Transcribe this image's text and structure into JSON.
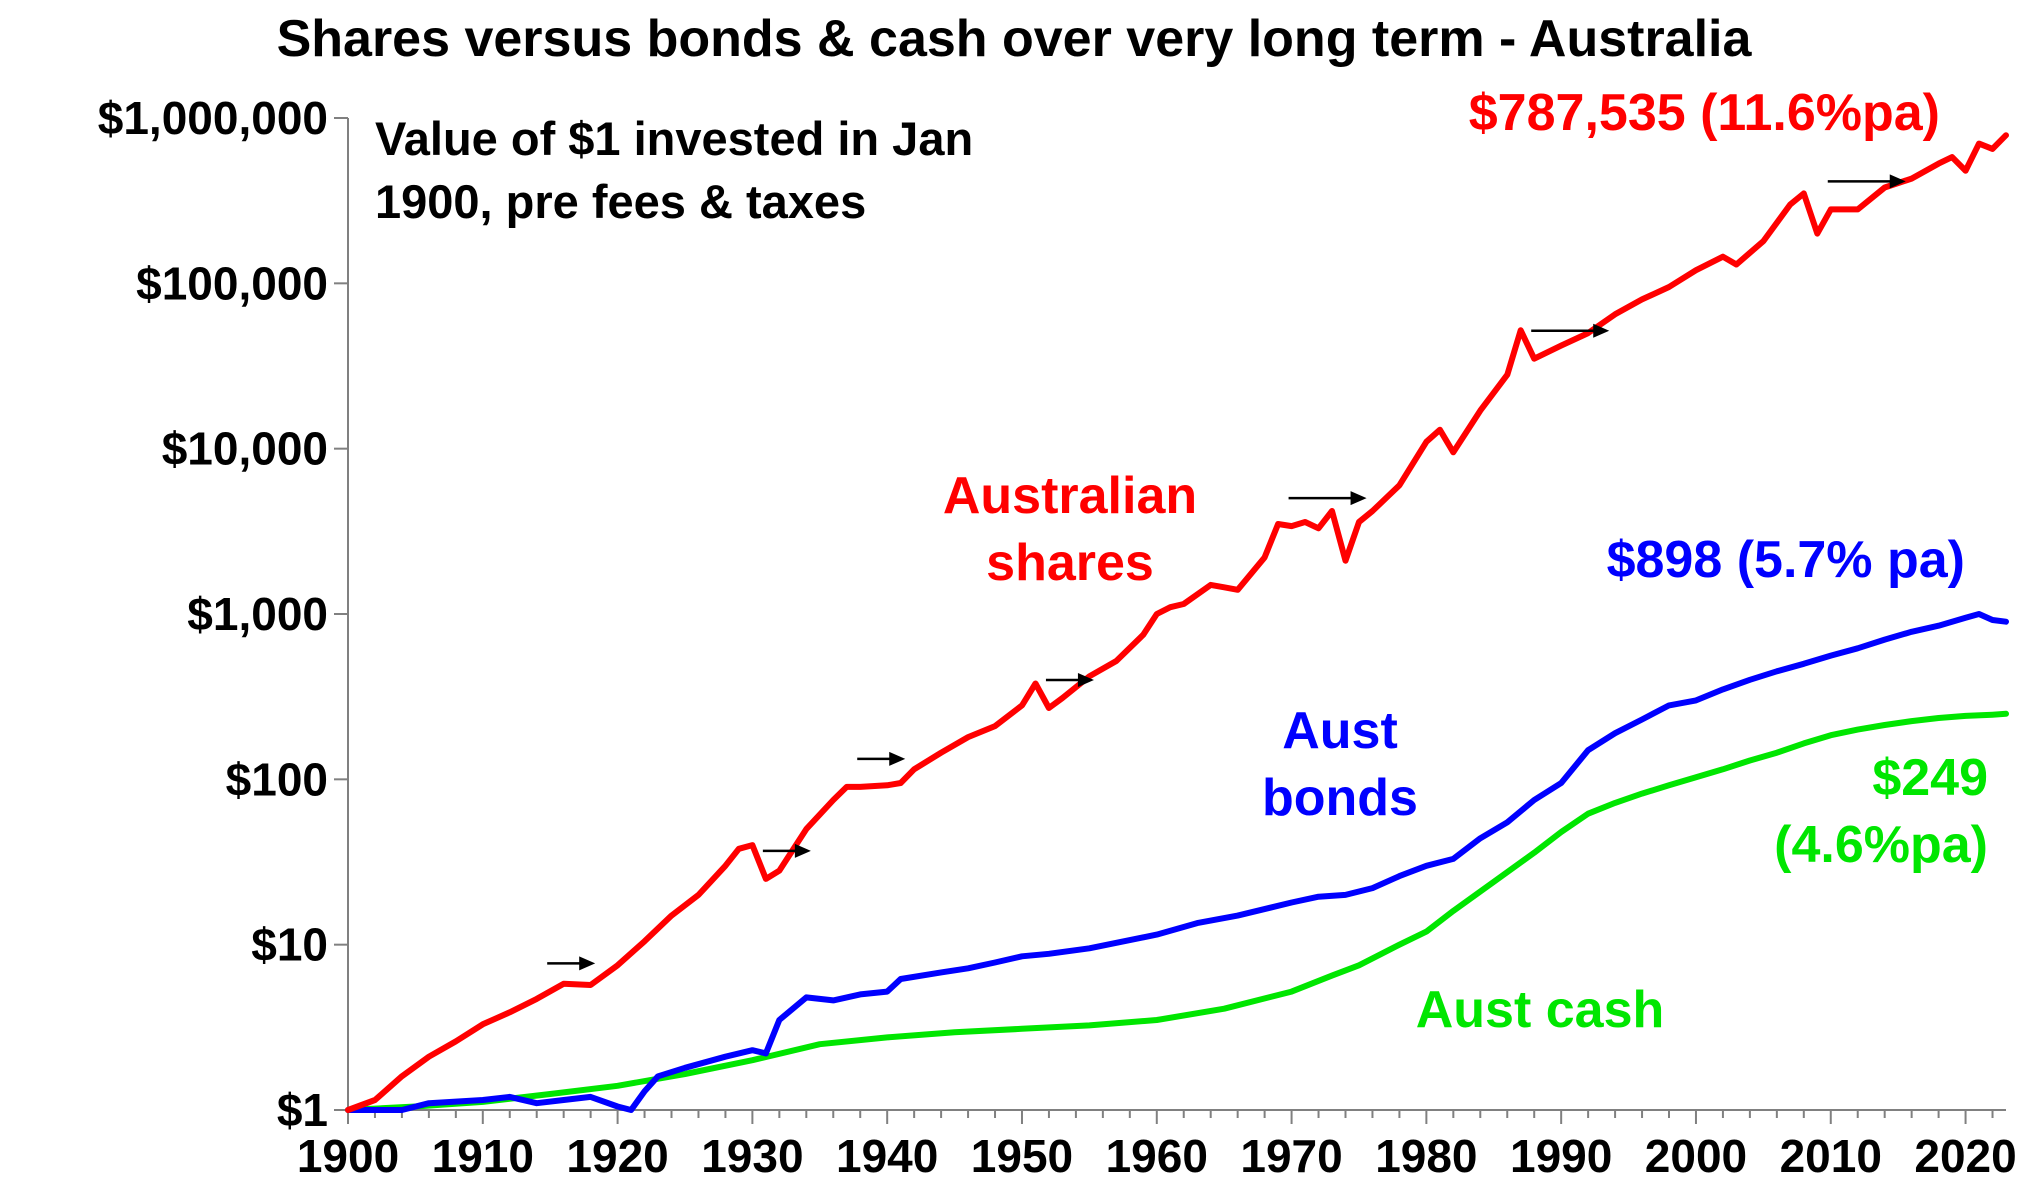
{
  "chart_data": {
    "type": "line",
    "title": "Shares versus bonds & cash over very long term - Australia",
    "subtitle_lines": [
      "Value of $1 invested in Jan",
      "1900, pre fees & taxes"
    ],
    "y_scale": "log",
    "ylim": [
      1,
      1000000
    ],
    "xlim": [
      1900,
      2023
    ],
    "y_ticks": [
      {
        "value": 1,
        "label": "$1"
      },
      {
        "value": 10,
        "label": "$10"
      },
      {
        "value": 100,
        "label": "$100"
      },
      {
        "value": 1000,
        "label": "$1,000"
      },
      {
        "value": 10000,
        "label": "$10,000"
      },
      {
        "value": 100000,
        "label": "$100,000"
      },
      {
        "value": 1000000,
        "label": "$1,000,000"
      }
    ],
    "x_ticks": [
      {
        "value": 1900,
        "label": "1900"
      },
      {
        "value": 1910,
        "label": "1910"
      },
      {
        "value": 1920,
        "label": "1920"
      },
      {
        "value": 1930,
        "label": "1930"
      },
      {
        "value": 1940,
        "label": "1940"
      },
      {
        "value": 1950,
        "label": "1950"
      },
      {
        "value": 1960,
        "label": "1960"
      },
      {
        "value": 1970,
        "label": "1970"
      },
      {
        "value": 1980,
        "label": "1980"
      },
      {
        "value": 1990,
        "label": "1990"
      },
      {
        "value": 2000,
        "label": "2000"
      },
      {
        "value": 2010,
        "label": "2010"
      },
      {
        "value": 2020,
        "label": "2020"
      }
    ],
    "grid": false,
    "series": [
      {
        "id": "shares",
        "color": "#ff0000",
        "label_lines": [
          "Australian",
          "shares"
        ],
        "end_label_lines": [
          "$787,535 (11.6%pa)"
        ],
        "x": [
          1900,
          1902,
          1904,
          1906,
          1908,
          1910,
          1912,
          1914,
          1916,
          1918,
          1920,
          1922,
          1924,
          1926,
          1928,
          1929,
          1930,
          1931,
          1932,
          1934,
          1936,
          1937,
          1938,
          1940,
          1941,
          1942,
          1944,
          1946,
          1948,
          1950,
          1951,
          1952,
          1953,
          1955,
          1957,
          1959,
          1960,
          1961,
          1962,
          1964,
          1965,
          1966,
          1968,
          1969,
          1970,
          1971,
          1972,
          1973,
          1974,
          1975,
          1976,
          1978,
          1980,
          1981,
          1982,
          1984,
          1986,
          1987,
          1988,
          1990,
          1992,
          1994,
          1996,
          1998,
          2000,
          2002,
          2003,
          2005,
          2007,
          2008,
          2009,
          2010,
          2012,
          2014,
          2016,
          2018,
          2019,
          2020,
          2021,
          2022,
          2023
        ],
        "values": [
          1.0,
          1.15,
          1.6,
          2.1,
          2.6,
          3.3,
          3.9,
          4.7,
          5.8,
          5.7,
          7.5,
          10.5,
          15,
          20,
          30,
          38,
          40,
          25,
          28,
          50,
          75,
          90,
          90,
          92,
          95,
          115,
          145,
          180,
          210,
          280,
          380,
          270,
          310,
          420,
          520,
          750,
          1000,
          1100,
          1150,
          1500,
          1450,
          1400,
          2200,
          3500,
          3400,
          3600,
          3300,
          4200,
          2100,
          3600,
          4200,
          6000,
          11000,
          13000,
          9500,
          17000,
          28000,
          52000,
          35000,
          42000,
          50000,
          65000,
          80000,
          95000,
          120000,
          145000,
          130000,
          180000,
          300000,
          350000,
          200000,
          280000,
          280000,
          380000,
          430000,
          530000,
          580000,
          480000,
          700000,
          650000,
          787535
        ]
      },
      {
        "id": "bonds",
        "color": "#0000ff",
        "label_lines": [
          "Aust",
          "bonds"
        ],
        "end_label_lines": [
          "$898 (5.7% pa)"
        ],
        "x": [
          1900,
          1904,
          1906,
          1910,
          1912,
          1914,
          1916,
          1918,
          1920,
          1921,
          1922,
          1923,
          1925,
          1928,
          1930,
          1931,
          1932,
          1934,
          1936,
          1938,
          1940,
          1941,
          1944,
          1946,
          1948,
          1950,
          1952,
          1955,
          1960,
          1963,
          1966,
          1970,
          1972,
          1974,
          1976,
          1978,
          1980,
          1982,
          1984,
          1986,
          1988,
          1990,
          1992,
          1994,
          1996,
          1998,
          2000,
          2002,
          2004,
          2006,
          2008,
          2010,
          2012,
          2014,
          2016,
          2018,
          2020,
          2021,
          2022,
          2023
        ],
        "values": [
          1.0,
          1.0,
          1.1,
          1.15,
          1.2,
          1.1,
          1.15,
          1.2,
          1.05,
          1.0,
          1.3,
          1.6,
          1.8,
          2.1,
          2.3,
          2.2,
          3.5,
          4.8,
          4.6,
          5.0,
          5.2,
          6.2,
          6.8,
          7.2,
          7.8,
          8.5,
          8.8,
          9.5,
          11.5,
          13.5,
          15,
          18,
          19.5,
          20,
          22,
          26,
          30,
          33,
          44,
          55,
          75,
          95,
          150,
          190,
          230,
          280,
          300,
          350,
          400,
          450,
          500,
          560,
          620,
          700,
          780,
          850,
          950,
          1000,
          920,
          898
        ]
      },
      {
        "id": "cash",
        "color": "#00e600",
        "label_lines": [
          "Aust cash"
        ],
        "end_label_lines": [
          "$249",
          "(4.6%pa)"
        ],
        "x": [
          1900,
          1905,
          1910,
          1915,
          1920,
          1925,
          1930,
          1935,
          1940,
          1945,
          1950,
          1955,
          1960,
          1965,
          1970,
          1973,
          1975,
          1978,
          1980,
          1982,
          1985,
          1988,
          1990,
          1992,
          1994,
          1996,
          1998,
          2000,
          2002,
          2004,
          2006,
          2008,
          2010,
          2012,
          2014,
          2016,
          2018,
          2020,
          2022,
          2023
        ],
        "values": [
          1.0,
          1.05,
          1.12,
          1.25,
          1.4,
          1.65,
          2.0,
          2.5,
          2.75,
          2.95,
          3.1,
          3.25,
          3.5,
          4.1,
          5.2,
          6.5,
          7.5,
          10,
          12,
          16,
          24,
          36,
          48,
          62,
          72,
          82,
          92,
          103,
          115,
          130,
          145,
          165,
          185,
          200,
          213,
          225,
          235,
          242,
          246,
          249
        ]
      }
    ],
    "annotations": {
      "arrow_years": [
        1915,
        1931,
        1938,
        1952,
        1970,
        1988,
        2010
      ],
      "arrow_color": "#000000"
    }
  }
}
